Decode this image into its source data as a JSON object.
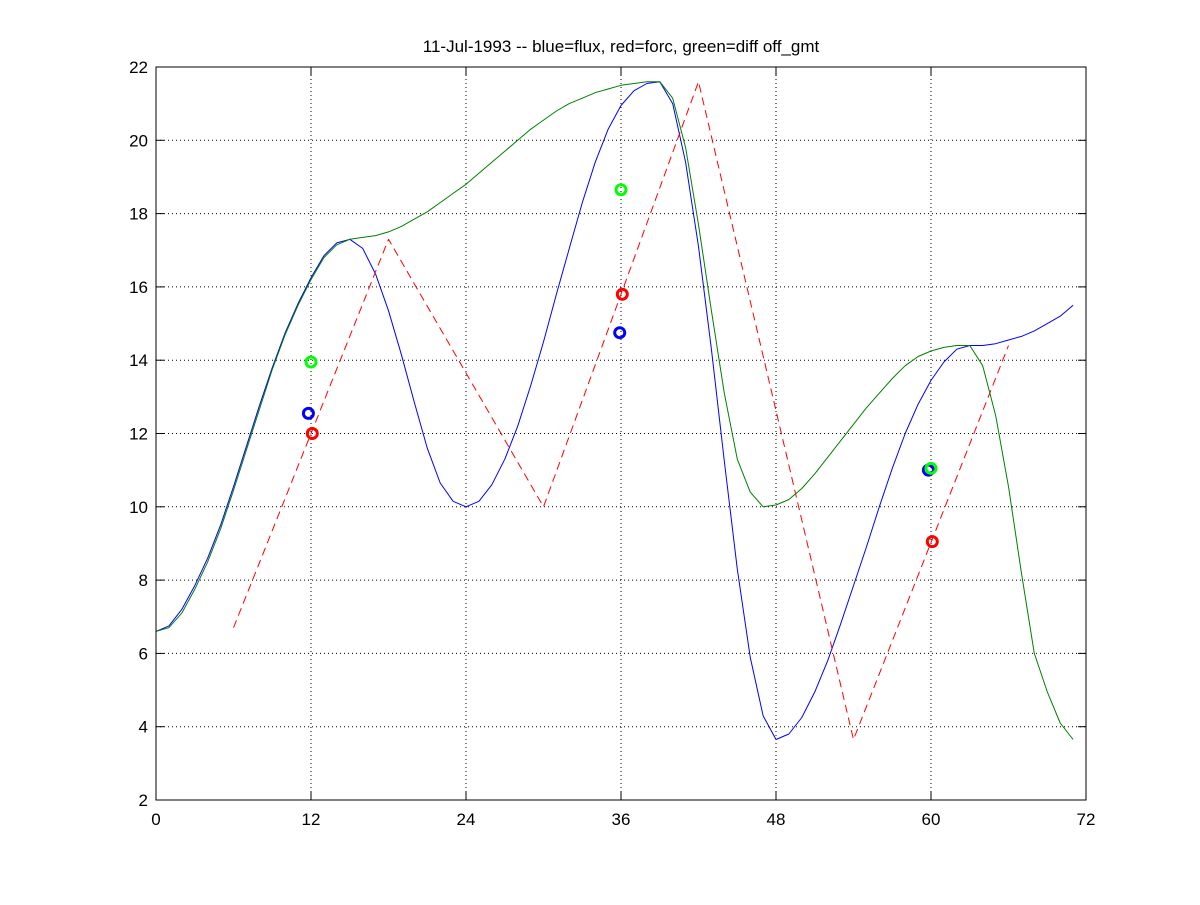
{
  "chart_data": {
    "type": "line",
    "title": "11-Jul-1993 -- blue=flux, red=forc, green=diff off_gmt",
    "xlabel": "",
    "ylabel": "",
    "xlim": [
      0,
      72
    ],
    "ylim": [
      2,
      22
    ],
    "xticks": [
      0,
      12,
      24,
      36,
      48,
      60,
      72
    ],
    "yticks": [
      2,
      4,
      6,
      8,
      10,
      12,
      14,
      16,
      18,
      20,
      22
    ],
    "grid": true,
    "legend": "none",
    "series": [
      {
        "color": "#0000ff",
        "style": "solid",
        "points": [
          [
            0,
            6.6
          ],
          [
            1,
            6.75
          ],
          [
            2,
            7.2
          ],
          [
            3,
            7.85
          ],
          [
            4,
            8.6
          ],
          [
            5,
            9.5
          ],
          [
            6,
            10.55
          ],
          [
            7,
            11.65
          ],
          [
            8,
            12.75
          ],
          [
            9,
            13.8
          ],
          [
            10,
            14.75
          ],
          [
            11,
            15.55
          ],
          [
            12,
            16.25
          ],
          [
            13,
            16.85
          ],
          [
            14,
            17.2
          ],
          [
            15,
            17.3
          ],
          [
            16,
            17.05
          ],
          [
            17,
            16.35
          ],
          [
            18,
            15.35
          ],
          [
            19,
            14.15
          ],
          [
            20,
            12.85
          ],
          [
            21,
            11.6
          ],
          [
            22,
            10.65
          ],
          [
            23,
            10.15
          ],
          [
            24,
            10.0
          ],
          [
            25,
            10.15
          ],
          [
            26,
            10.6
          ],
          [
            27,
            11.3
          ],
          [
            28,
            12.2
          ],
          [
            29,
            13.3
          ],
          [
            30,
            14.5
          ],
          [
            31,
            15.8
          ],
          [
            32,
            17.05
          ],
          [
            33,
            18.3
          ],
          [
            34,
            19.4
          ],
          [
            35,
            20.3
          ],
          [
            36,
            20.95
          ],
          [
            37,
            21.35
          ],
          [
            38,
            21.55
          ],
          [
            39,
            21.6
          ],
          [
            40,
            21.0
          ],
          [
            41,
            19.4
          ],
          [
            42,
            17.1
          ],
          [
            43,
            14.3
          ],
          [
            44,
            11.25
          ],
          [
            45,
            8.3
          ],
          [
            46,
            5.9
          ],
          [
            47,
            4.3
          ],
          [
            48,
            3.65
          ],
          [
            49,
            3.8
          ],
          [
            50,
            4.25
          ],
          [
            51,
            4.95
          ],
          [
            52,
            5.8
          ],
          [
            53,
            6.8
          ],
          [
            54,
            7.85
          ],
          [
            55,
            8.9
          ],
          [
            56,
            10.0
          ],
          [
            57,
            11.05
          ],
          [
            58,
            12.0
          ],
          [
            59,
            12.8
          ],
          [
            60,
            13.45
          ],
          [
            61,
            13.95
          ],
          [
            62,
            14.3
          ],
          [
            63,
            14.4
          ],
          [
            64,
            14.4
          ],
          [
            65,
            14.45
          ],
          [
            66,
            14.55
          ],
          [
            67,
            14.65
          ],
          [
            68,
            14.8
          ],
          [
            69,
            15.0
          ],
          [
            70,
            15.2
          ],
          [
            71,
            15.5
          ]
        ]
      },
      {
        "color": "#ff0000",
        "style": "dashed",
        "points": [
          [
            6,
            6.7
          ],
          [
            18,
            17.3
          ],
          [
            24,
            13.65
          ],
          [
            30,
            10.0
          ],
          [
            42,
            21.6
          ],
          [
            54,
            3.65
          ],
          [
            66,
            14.4
          ]
        ]
      },
      {
        "color": "#007f00",
        "style": "solid",
        "points": [
          [
            0,
            6.6
          ],
          [
            1,
            6.7
          ],
          [
            2,
            7.1
          ],
          [
            3,
            7.75
          ],
          [
            4,
            8.5
          ],
          [
            5,
            9.4
          ],
          [
            6,
            10.45
          ],
          [
            7,
            11.55
          ],
          [
            8,
            12.65
          ],
          [
            9,
            13.75
          ],
          [
            10,
            14.7
          ],
          [
            11,
            15.5
          ],
          [
            12,
            16.2
          ],
          [
            13,
            16.8
          ],
          [
            14,
            17.15
          ],
          [
            15,
            17.3
          ],
          [
            16,
            17.35
          ],
          [
            17,
            17.4
          ],
          [
            18,
            17.5
          ],
          [
            19,
            17.65
          ],
          [
            20,
            17.85
          ],
          [
            21,
            18.05
          ],
          [
            22,
            18.3
          ],
          [
            23,
            18.55
          ],
          [
            24,
            18.8
          ],
          [
            25,
            19.1
          ],
          [
            26,
            19.4
          ],
          [
            27,
            19.7
          ],
          [
            28,
            20.0
          ],
          [
            29,
            20.3
          ],
          [
            30,
            20.55
          ],
          [
            31,
            20.8
          ],
          [
            32,
            21.0
          ],
          [
            33,
            21.15
          ],
          [
            34,
            21.3
          ],
          [
            35,
            21.4
          ],
          [
            36,
            21.5
          ],
          [
            37,
            21.55
          ],
          [
            38,
            21.6
          ],
          [
            39,
            21.6
          ],
          [
            40,
            21.15
          ],
          [
            41,
            19.8
          ],
          [
            42,
            17.7
          ],
          [
            43,
            15.35
          ],
          [
            44,
            13.1
          ],
          [
            45,
            11.3
          ],
          [
            46,
            10.4
          ],
          [
            47,
            10.0
          ],
          [
            48,
            10.05
          ],
          [
            49,
            10.2
          ],
          [
            50,
            10.5
          ],
          [
            51,
            10.9
          ],
          [
            52,
            11.35
          ],
          [
            53,
            11.8
          ],
          [
            54,
            12.25
          ],
          [
            55,
            12.7
          ],
          [
            56,
            13.1
          ],
          [
            57,
            13.5
          ],
          [
            58,
            13.85
          ],
          [
            59,
            14.1
          ],
          [
            60,
            14.25
          ],
          [
            61,
            14.35
          ],
          [
            62,
            14.4
          ],
          [
            63,
            14.4
          ],
          [
            64,
            13.85
          ],
          [
            65,
            12.5
          ],
          [
            66,
            10.55
          ],
          [
            67,
            8.2
          ],
          [
            68,
            6.0
          ],
          [
            69,
            4.95
          ],
          [
            70,
            4.1
          ],
          [
            71,
            3.65
          ]
        ]
      }
    ],
    "markers": [
      {
        "x": 11.8,
        "y": 12.55,
        "color": "#0000ff"
      },
      {
        "x": 12.0,
        "y": 13.95,
        "color": "#00ff00"
      },
      {
        "x": 12.1,
        "y": 12.0,
        "color": "#ff0000"
      },
      {
        "x": 35.9,
        "y": 14.75,
        "color": "#0000ff"
      },
      {
        "x": 36.0,
        "y": 18.65,
        "color": "#00ff00"
      },
      {
        "x": 36.1,
        "y": 15.8,
        "color": "#ff0000"
      },
      {
        "x": 59.8,
        "y": 11.0,
        "color": "#0000ff"
      },
      {
        "x": 60.0,
        "y": 11.05,
        "color": "#00ff00"
      },
      {
        "x": 60.1,
        "y": 9.05,
        "color": "#ff0000"
      }
    ]
  }
}
